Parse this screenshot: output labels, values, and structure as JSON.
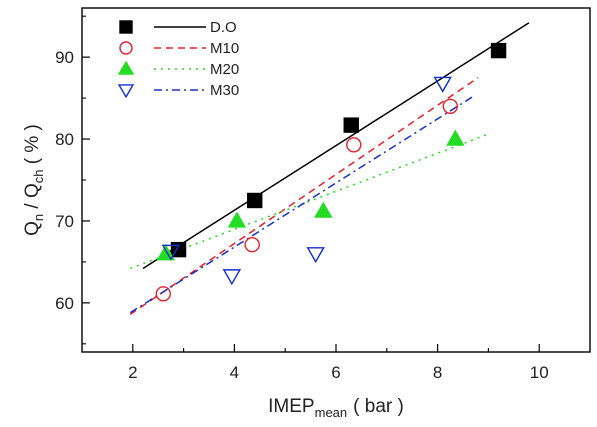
{
  "chart_data": {
    "type": "scatter",
    "xlabel": {
      "main": "IMEP",
      "sub": "mean",
      "unit": "( bar )"
    },
    "ylabel": {
      "q": "Q",
      "q_sub": "n",
      "slash": " / ",
      "q2": "Q",
      "q2_sub": "ch",
      "unit": " ( % )"
    },
    "xlim": [
      1,
      11
    ],
    "ylim": [
      54,
      96
    ],
    "xticks": [
      2,
      4,
      6,
      8,
      10
    ],
    "yticks": [
      60,
      70,
      80,
      90
    ],
    "legend_position": "top-left",
    "grid": false,
    "series": [
      {
        "name": "D.O",
        "marker": "square-filled",
        "color": "#000000",
        "line_style": "solid",
        "points": [
          [
            2.9,
            66.5
          ],
          [
            4.4,
            72.5
          ],
          [
            6.3,
            81.7
          ],
          [
            9.2,
            90.8
          ]
        ],
        "fit": [
          [
            2.2,
            64.2
          ],
          [
            9.8,
            94.2
          ]
        ]
      },
      {
        "name": "M10",
        "marker": "circle-open",
        "color": "#e8202a",
        "line_style": "dashed",
        "points": [
          [
            2.6,
            61.1
          ],
          [
            4.35,
            67.1
          ],
          [
            6.35,
            79.3
          ],
          [
            8.25,
            84.0
          ]
        ],
        "fit": [
          [
            1.95,
            58.6
          ],
          [
            8.8,
            87.5
          ]
        ]
      },
      {
        "name": "M20",
        "marker": "triangle-up-filled",
        "color": "#22dd22",
        "line_style": "dotted",
        "points": [
          [
            2.65,
            66.0
          ],
          [
            4.05,
            70.0
          ],
          [
            5.75,
            71.2
          ],
          [
            8.35,
            80.0
          ]
        ],
        "fit": [
          [
            1.95,
            64.2
          ],
          [
            9.0,
            80.6
          ]
        ]
      },
      {
        "name": "M30",
        "marker": "triangle-down-open",
        "color": "#1530c8",
        "line_style": "dashdot",
        "points": [
          [
            2.75,
            66.3
          ],
          [
            3.95,
            63.3
          ],
          [
            5.6,
            66.0
          ],
          [
            8.1,
            86.8
          ]
        ],
        "fit": [
          [
            1.95,
            58.8
          ],
          [
            8.7,
            85.2
          ]
        ]
      }
    ]
  }
}
